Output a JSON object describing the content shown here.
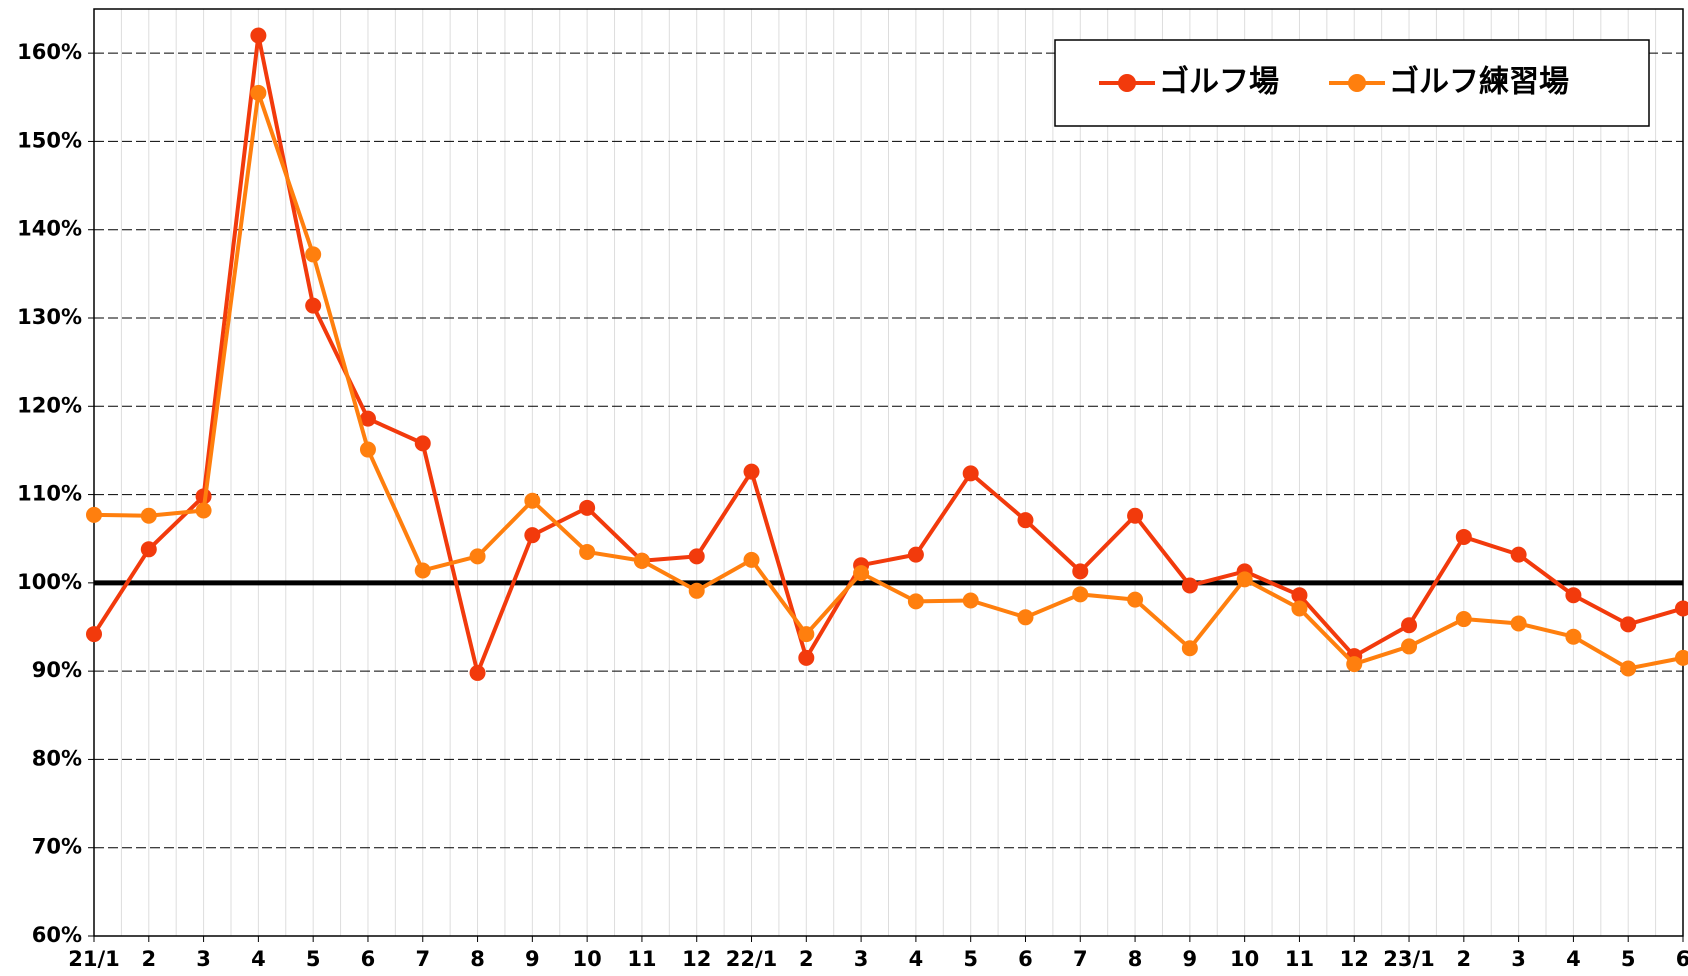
{
  "chart_data": {
    "type": "line",
    "categories": [
      "21/1",
      "2",
      "3",
      "4",
      "5",
      "6",
      "7",
      "8",
      "9",
      "10",
      "11",
      "12",
      "22/1",
      "2",
      "3",
      "4",
      "5",
      "6",
      "7",
      "8",
      "9",
      "10",
      "11",
      "12",
      "23/1",
      "2",
      "3",
      "4",
      "5",
      "6"
    ],
    "series": [
      {
        "name": "ゴルフ場",
        "color": "#f23a0c",
        "values": [
          94.2,
          103.8,
          109.8,
          162,
          131.4,
          118.6,
          115.8,
          89.8,
          105.4,
          108.5,
          102.5,
          103,
          112.6,
          91.5,
          102,
          103.2,
          112.4,
          107.1,
          101.3,
          107.6,
          99.7,
          101.3,
          98.6,
          91.7,
          95.2,
          105.2,
          103.2,
          98.6,
          95.3,
          97.1
        ]
      },
      {
        "name": "ゴルフ練習場",
        "color": "#ff7f0e",
        "values": [
          107.7,
          107.6,
          108.2,
          155.5,
          137.2,
          115.1,
          101.4,
          103,
          109.3,
          103.5,
          102.5,
          99.1,
          102.6,
          94.2,
          101.1,
          97.9,
          98,
          96.1,
          98.7,
          98.1,
          92.6,
          100.4,
          97.1,
          90.8,
          92.8,
          95.9,
          95.4,
          93.9,
          90.3,
          91.5
        ]
      }
    ],
    "ylim": [
      60,
      165
    ],
    "yticks": [
      {
        "value": 60,
        "label": "60%"
      },
      {
        "value": 70,
        "label": "70%"
      },
      {
        "value": 80,
        "label": "80%"
      },
      {
        "value": 90,
        "label": "90%"
      },
      {
        "value": 100,
        "label": "100%"
      },
      {
        "value": 110,
        "label": "110%"
      },
      {
        "value": 120,
        "label": "120%"
      },
      {
        "value": 130,
        "label": "130%"
      },
      {
        "value": 140,
        "label": "140%"
      },
      {
        "value": 150,
        "label": "150%"
      },
      {
        "value": 160,
        "label": "160%"
      }
    ],
    "reference_line": 100,
    "grid": true,
    "legend": "upper right"
  }
}
